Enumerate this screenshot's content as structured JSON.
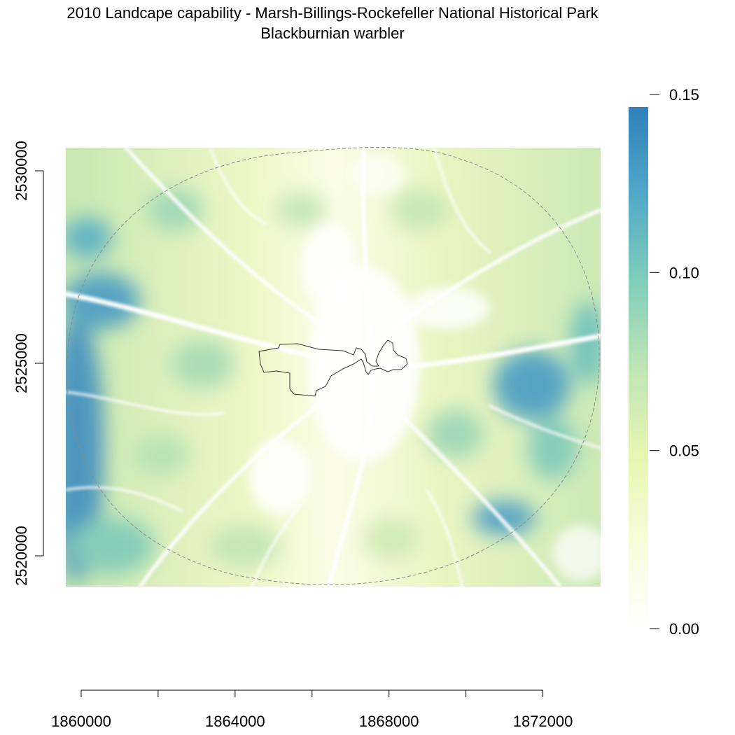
{
  "title": "2010 Landcape capability - Marsh-Billings-Rockefeller National Historical Park",
  "subtitle": "Blackburnian warbler",
  "x_axis": {
    "range": [
      1859600,
      1873500
    ],
    "ticks": [
      1860000,
      1862000,
      1864000,
      1866000,
      1868000,
      1870000,
      1872000
    ],
    "tick_labels": [
      "1860000",
      "",
      "1864000",
      "",
      "1868000",
      "",
      "1872000"
    ]
  },
  "y_axis": {
    "range": [
      2519200,
      2530600
    ],
    "ticks": [
      2520000,
      2525000,
      2530000
    ],
    "tick_labels": [
      "2520000",
      "2525000",
      "2530000"
    ]
  },
  "legend": {
    "range": [
      0.0,
      0.15
    ],
    "ticks": [
      0.0,
      0.05,
      0.1,
      0.15
    ],
    "tick_labels": [
      "0.00",
      "0.05",
      "0.10",
      "0.15"
    ],
    "colors": [
      "#ffffff",
      "#f7fcd9",
      "#e6f5b8",
      "#c6e8b4",
      "#8fd3bb",
      "#5bb6c6",
      "#3189bf"
    ]
  },
  "map": {
    "buffer_outline": "dashed-gray-circle",
    "park_boundary": "black-outline"
  }
}
